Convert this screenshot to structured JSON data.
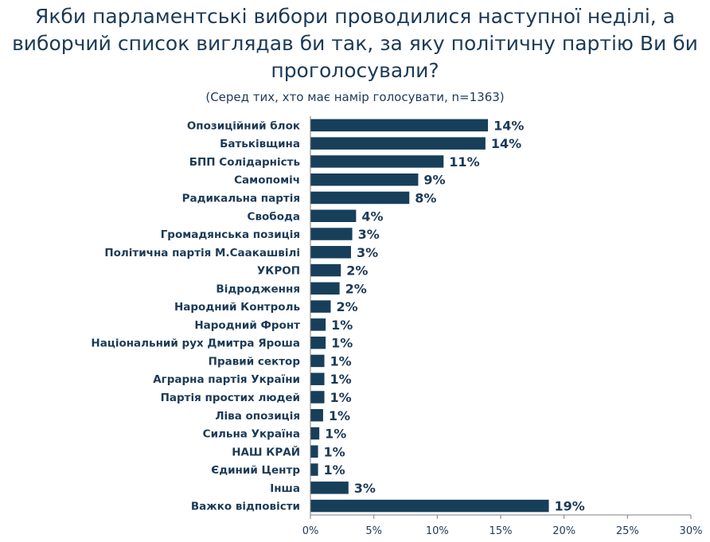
{
  "chart_data": {
    "type": "bar",
    "orientation": "horizontal",
    "title": "Якби парламентські вибори проводилися наступної неділі, а виборчий список виглядав би так, за яку політичну партію Ви би проголосували?",
    "subtitle": "(Серед тих, хто має намір голосувати, n=1363)",
    "categories": [
      "Опозиційний блок",
      "Батьківщина",
      "БПП Солідарність",
      "Самопоміч",
      "Радикальна партія",
      "Свобода",
      "Громадянська позиція",
      "Політична партія М.Саакашвілі",
      "УКРОП",
      "Відродження",
      "Народний Контроль",
      "Народний Фронт",
      "Національний рух Дмитра Яроша",
      "Правий сектор",
      "Аграрна партія України",
      "Партія простих людей",
      "Ліва опозиція",
      "Сильна Україна",
      "НАШ КРАЙ",
      "Єдиний Центр",
      "Інша",
      "Важко відповісти"
    ],
    "values": [
      14.0,
      13.8,
      10.5,
      8.5,
      7.8,
      3.6,
      3.3,
      3.2,
      2.4,
      2.3,
      1.6,
      1.2,
      1.2,
      1.1,
      1.1,
      1.1,
      1.0,
      0.7,
      0.6,
      0.6,
      3.0,
      18.8
    ],
    "value_labels": [
      "14%",
      "14%",
      "11%",
      "9%",
      "8%",
      "4%",
      "3%",
      "3%",
      "2%",
      "2%",
      "2%",
      "1%",
      "1%",
      "1%",
      "1%",
      "1%",
      "1%",
      "1%",
      "1%",
      "1%",
      "3%",
      "19%"
    ],
    "xlim": [
      0,
      30
    ],
    "xticks": [
      0,
      5,
      10,
      15,
      20,
      25,
      30
    ],
    "xtick_labels": [
      "0%",
      "5%",
      "10%",
      "15%",
      "20%",
      "25%",
      "30%"
    ],
    "grid": false,
    "legend": "none",
    "bar_color": "#173f5a",
    "text_color": "#1b3a57"
  }
}
